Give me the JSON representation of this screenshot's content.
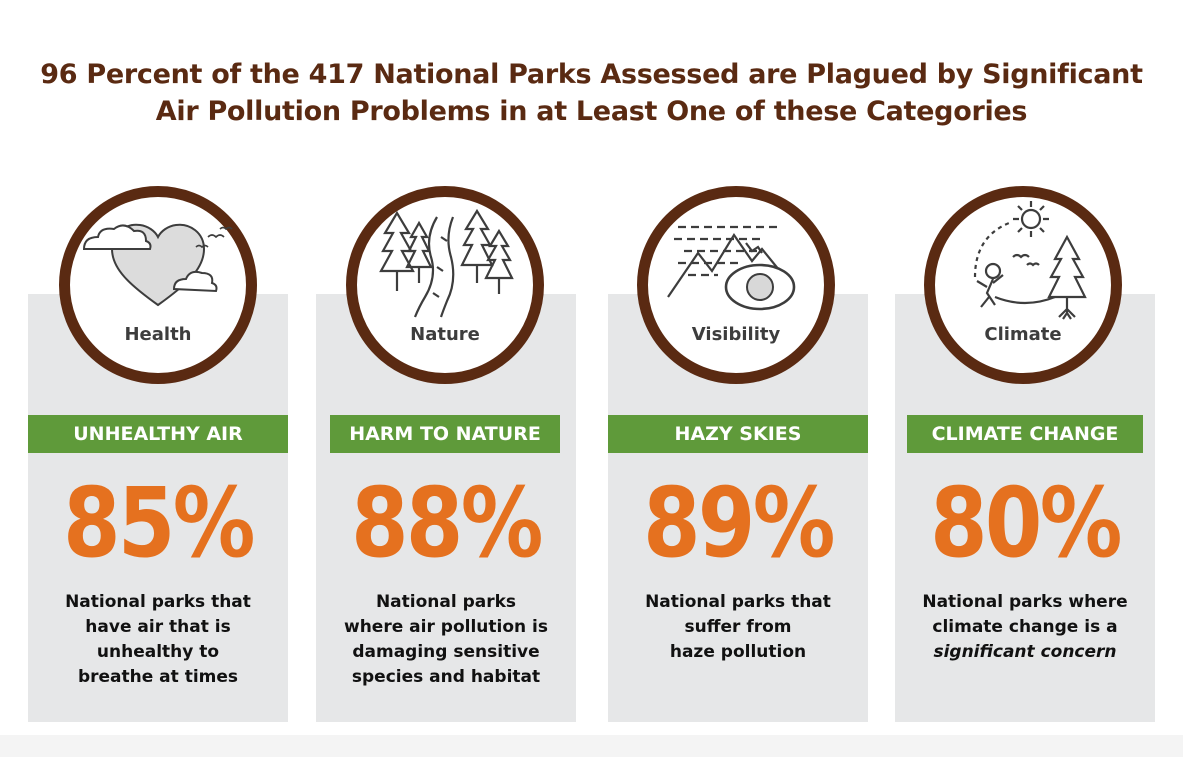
{
  "title": {
    "line1": "96 Percent of the 417 National Parks Assessed are Plagued by Significant",
    "line2": "Air Pollution Problems in at Least One of these Categories"
  },
  "colors": {
    "brown": "#5a2a12",
    "green": "#5f9a3a",
    "orange": "#e5711f",
    "card": "#e6e7e8"
  },
  "cards": [
    {
      "icon": "heart-clouds-icon",
      "label": "Health",
      "category": "UNHEALTHY AIR",
      "percent": "85%",
      "desc": [
        "National parks that",
        "have air that is",
        "unhealthy to",
        "breathe at times"
      ],
      "desc_em": ""
    },
    {
      "icon": "trees-river-icon",
      "label": "Nature",
      "category": "HARM TO NATURE",
      "percent": "88%",
      "desc": [
        "National parks",
        "where air pollution is",
        "damaging sensitive",
        "species and habitat"
      ],
      "desc_em": ""
    },
    {
      "icon": "mountains-eye-icon",
      "label": "Visibility",
      "category": "HAZY SKIES",
      "percent": "89%",
      "desc": [
        "National parks that",
        "suffer from",
        "haze pollution"
      ],
      "desc_em": ""
    },
    {
      "icon": "sun-tree-person-icon",
      "label": "Climate",
      "category": "CLIMATE CHANGE",
      "percent": "80%",
      "desc": [
        "National parks where",
        "climate change is a"
      ],
      "desc_em": "significant concern"
    }
  ]
}
